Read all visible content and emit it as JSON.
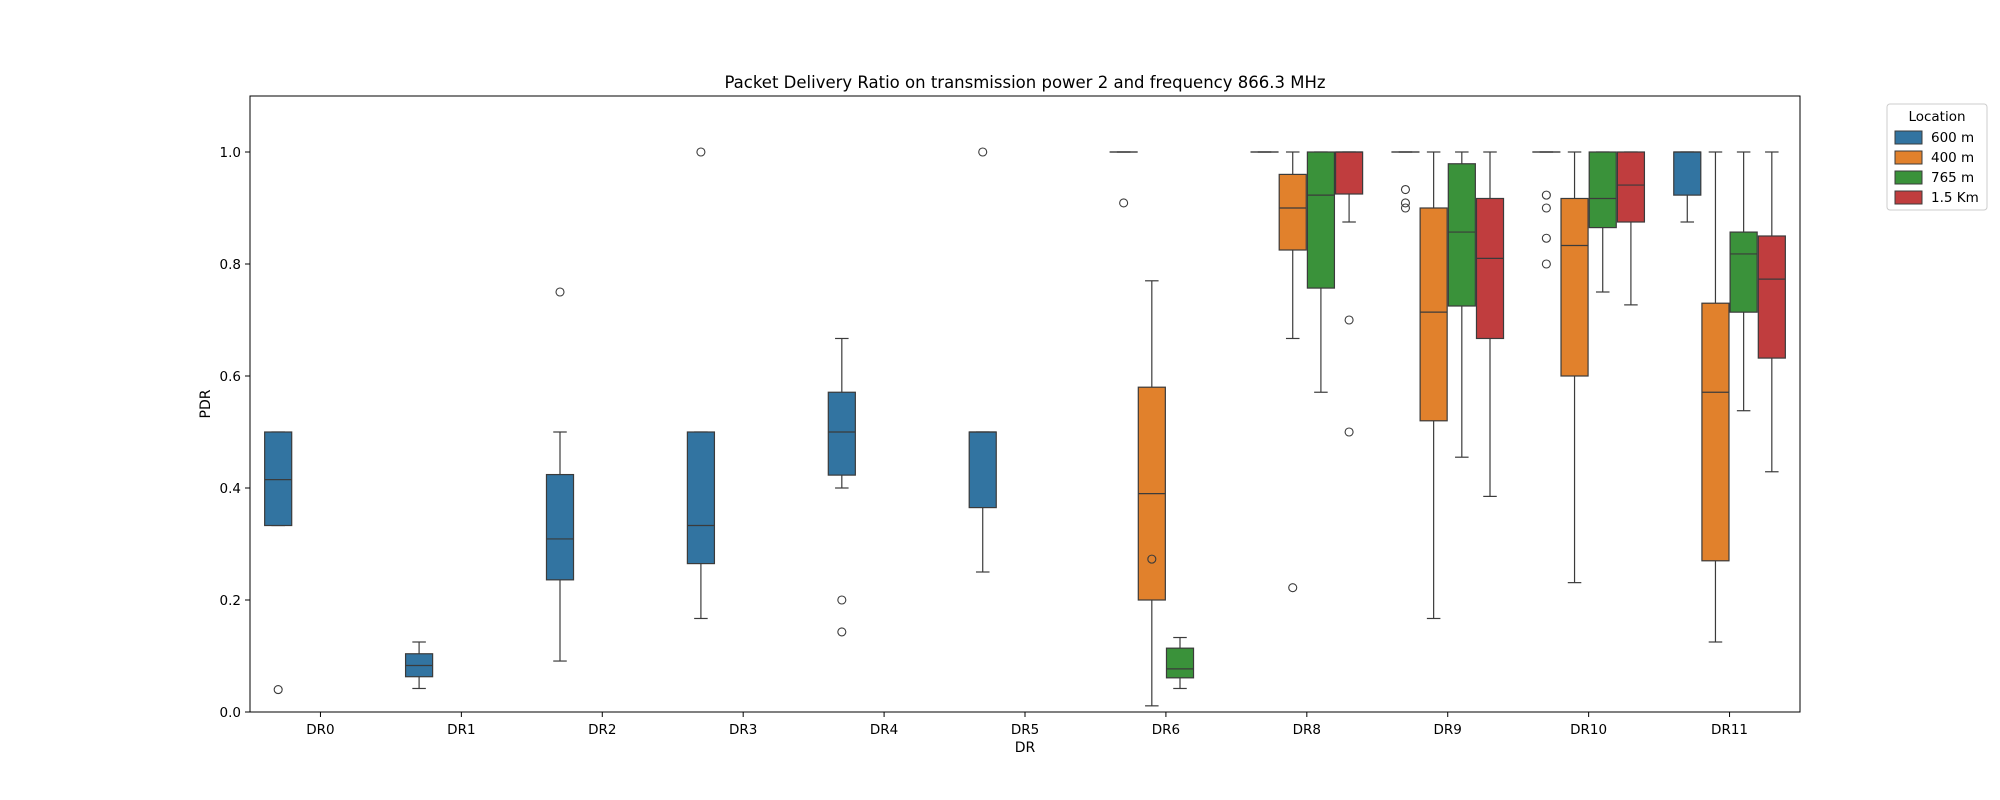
{
  "chart_data": {
    "type": "boxplot",
    "title": "Packet Delivery Ratio on transmission power 2 and frequency 866.3 MHz",
    "xlabel": "DR",
    "ylabel": "PDR",
    "ylim": [
      0,
      1.1
    ],
    "yticks": [
      "0.0",
      "0.2",
      "0.4",
      "0.6",
      "0.8",
      "1.0"
    ],
    "categories": [
      "DR0",
      "DR1",
      "DR2",
      "DR3",
      "DR4",
      "DR5",
      "DR6",
      "DR8",
      "DR9",
      "DR10",
      "DR11"
    ],
    "legend": {
      "title": "Location",
      "position": "outside-top-right"
    },
    "grid": false,
    "series": [
      {
        "name": "600 m",
        "color": "#3274a1"
      },
      {
        "name": "400 m",
        "color": "#e1812c"
      },
      {
        "name": "765 m",
        "color": "#3a923a"
      },
      {
        "name": "1.5 Km",
        "color": "#c03d3e"
      }
    ],
    "boxes": [
      {
        "category": "DR0",
        "series": 0,
        "whislo": 0.333,
        "q1": 0.333,
        "med": 0.415,
        "q3": 0.5,
        "whishi": 0.5,
        "fliers": [
          0.04
        ]
      },
      {
        "category": "DR1",
        "series": 0,
        "whislo": 0.042,
        "q1": 0.063,
        "med": 0.083,
        "q3": 0.104,
        "whishi": 0.125,
        "fliers": []
      },
      {
        "category": "DR2",
        "series": 0,
        "whislo": 0.091,
        "q1": 0.236,
        "med": 0.309,
        "q3": 0.424,
        "whishi": 0.5,
        "fliers": [
          0.75
        ]
      },
      {
        "category": "DR3",
        "series": 0,
        "whislo": 0.167,
        "q1": 0.265,
        "med": 0.333,
        "q3": 0.5,
        "whishi": 0.5,
        "fliers": [
          1.0
        ]
      },
      {
        "category": "DR4",
        "series": 0,
        "whislo": 0.4,
        "q1": 0.423,
        "med": 0.5,
        "q3": 0.571,
        "whishi": 0.667,
        "fliers": [
          0.2,
          0.143
        ]
      },
      {
        "category": "DR5",
        "series": 0,
        "whislo": 0.25,
        "q1": 0.365,
        "med": 0.5,
        "q3": 0.5,
        "whishi": 0.5,
        "fliers": [
          1.0
        ]
      },
      {
        "category": "DR6",
        "series": 0,
        "whislo": 1.0,
        "q1": 1.0,
        "med": 1.0,
        "q3": 1.0,
        "whishi": 1.0,
        "fliers": [
          0.909
        ]
      },
      {
        "category": "DR6",
        "series": 1,
        "whislo": 0.011,
        "q1": 0.2,
        "med": 0.39,
        "q3": 0.58,
        "whishi": 0.77,
        "fliers": [
          0.273
        ]
      },
      {
        "category": "DR6",
        "series": 2,
        "whislo": 0.042,
        "q1": 0.061,
        "med": 0.077,
        "q3": 0.114,
        "whishi": 0.133,
        "fliers": []
      },
      {
        "category": "DR8",
        "series": 0,
        "whislo": 1.0,
        "q1": 1.0,
        "med": 1.0,
        "q3": 1.0,
        "whishi": 1.0,
        "fliers": []
      },
      {
        "category": "DR8",
        "series": 1,
        "whislo": 0.667,
        "q1": 0.825,
        "med": 0.9,
        "q3": 0.96,
        "whishi": 1.0,
        "fliers": [
          0.222
        ]
      },
      {
        "category": "DR8",
        "series": 2,
        "whislo": 0.571,
        "q1": 0.757,
        "med": 0.923,
        "q3": 1.0,
        "whishi": 1.0,
        "fliers": []
      },
      {
        "category": "DR8",
        "series": 3,
        "whislo": 0.875,
        "q1": 0.925,
        "med": 1.0,
        "q3": 1.0,
        "whishi": 1.0,
        "fliers": [
          0.7,
          0.5
        ]
      },
      {
        "category": "DR9",
        "series": 0,
        "whislo": 1.0,
        "q1": 1.0,
        "med": 1.0,
        "q3": 1.0,
        "whishi": 1.0,
        "fliers": [
          0.933,
          0.909,
          0.9
        ]
      },
      {
        "category": "DR9",
        "series": 1,
        "whislo": 0.167,
        "q1": 0.52,
        "med": 0.714,
        "q3": 0.9,
        "whishi": 1.0,
        "fliers": []
      },
      {
        "category": "DR9",
        "series": 2,
        "whislo": 0.455,
        "q1": 0.725,
        "med": 0.857,
        "q3": 0.979,
        "whishi": 1.0,
        "fliers": []
      },
      {
        "category": "DR9",
        "series": 3,
        "whislo": 0.385,
        "q1": 0.667,
        "med": 0.81,
        "q3": 0.917,
        "whishi": 1.0,
        "fliers": []
      },
      {
        "category": "DR10",
        "series": 0,
        "whislo": 1.0,
        "q1": 1.0,
        "med": 1.0,
        "q3": 1.0,
        "whishi": 1.0,
        "fliers": [
          0.923,
          0.9,
          0.846,
          0.8
        ]
      },
      {
        "category": "DR10",
        "series": 1,
        "whislo": 0.231,
        "q1": 0.6,
        "med": 0.833,
        "q3": 0.917,
        "whishi": 1.0,
        "fliers": []
      },
      {
        "category": "DR10",
        "series": 2,
        "whislo": 0.75,
        "q1": 0.865,
        "med": 0.917,
        "q3": 1.0,
        "whishi": 1.0,
        "fliers": []
      },
      {
        "category": "DR10",
        "series": 3,
        "whislo": 0.727,
        "q1": 0.875,
        "med": 0.941,
        "q3": 1.0,
        "whishi": 1.0,
        "fliers": []
      },
      {
        "category": "DR11",
        "series": 0,
        "whislo": 0.875,
        "q1": 0.923,
        "med": 1.0,
        "q3": 1.0,
        "whishi": 1.0,
        "fliers": []
      },
      {
        "category": "DR11",
        "series": 1,
        "whislo": 0.125,
        "q1": 0.27,
        "med": 0.571,
        "q3": 0.73,
        "whishi": 1.0,
        "fliers": []
      },
      {
        "category": "DR11",
        "series": 2,
        "whislo": 0.538,
        "q1": 0.714,
        "med": 0.818,
        "q3": 0.857,
        "whishi": 1.0,
        "fliers": []
      },
      {
        "category": "DR11",
        "series": 3,
        "whislo": 0.429,
        "q1": 0.632,
        "med": 0.773,
        "q3": 0.85,
        "whishi": 1.0,
        "fliers": []
      }
    ]
  }
}
